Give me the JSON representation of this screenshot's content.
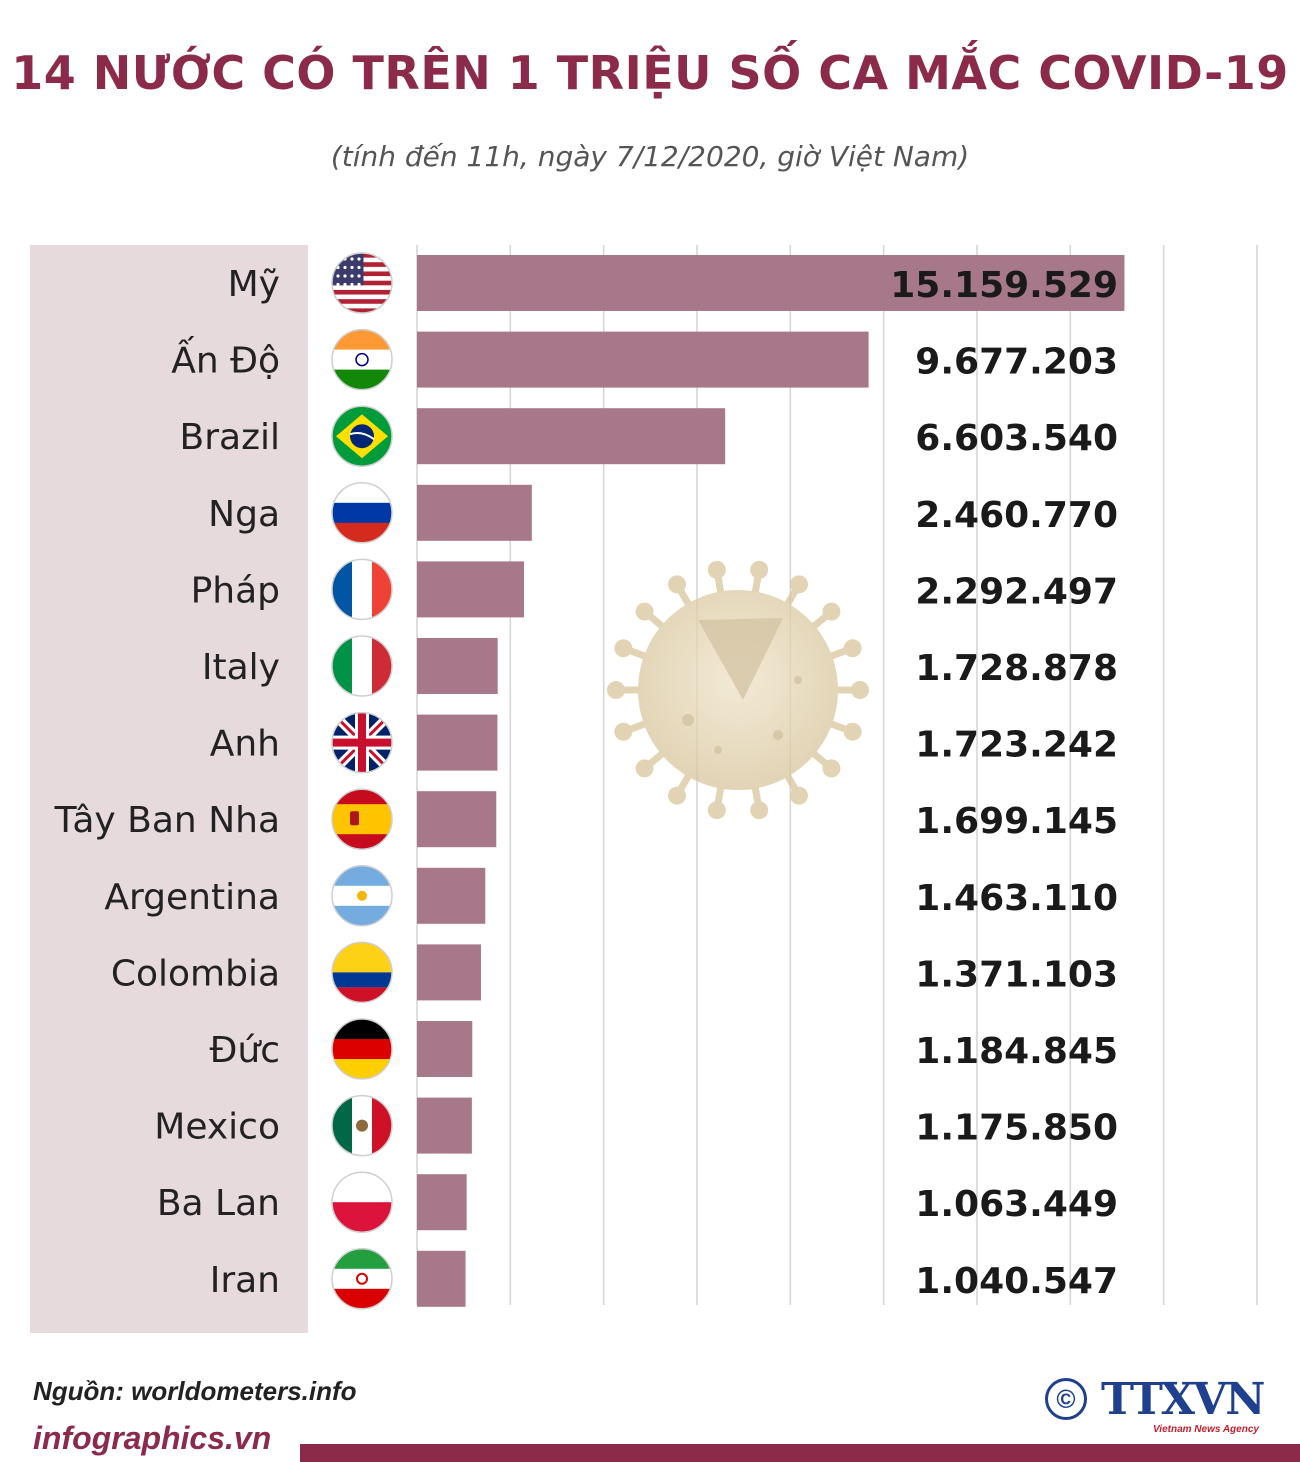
{
  "header": {
    "title": "14 NƯỚC CÓ TRÊN 1 TRIỆU SỐ CA MẮC COVID-19",
    "subtitle": "(tính đến 11h, ngày 7/12/2020, giờ Việt Nam)"
  },
  "chart_data": {
    "type": "bar",
    "orientation": "horizontal",
    "title": "14 NƯỚC CÓ TRÊN 1 TRIỆU SỐ CA MẮC COVID-19",
    "subtitle": "(tính đến 11h, ngày 7/12/2020, giờ Việt Nam)",
    "categories": [
      "Mỹ",
      "Ấn Độ",
      "Brazil",
      "Nga",
      "Pháp",
      "Italy",
      "Anh",
      "Tây Ban Nha",
      "Argentina",
      "Colombia",
      "Đức",
      "Mexico",
      "Ba Lan",
      "Iran"
    ],
    "values": [
      15159529,
      9677203,
      6603540,
      2460770,
      2292497,
      1728878,
      1723242,
      1699145,
      1463110,
      1371103,
      1184845,
      1175850,
      1063449,
      1040547
    ],
    "value_labels": [
      "15.159.529",
      "9.677.203",
      "6.603.540",
      "2.460.770",
      "2.292.497",
      "1.728.878",
      "1.723.242",
      "1.699.145",
      "1.463.110",
      "1.371.103",
      "1.184.845",
      "1.175.850",
      "1.063.449",
      "1.040.547"
    ],
    "flags": [
      "us-flag-icon",
      "india-flag-icon",
      "brazil-flag-icon",
      "russia-flag-icon",
      "france-flag-icon",
      "italy-flag-icon",
      "uk-flag-icon",
      "spain-flag-icon",
      "argentina-flag-icon",
      "colombia-flag-icon",
      "germany-flag-icon",
      "mexico-flag-icon",
      "poland-flag-icon",
      "iran-flag-icon"
    ],
    "xlim": [
      0,
      18000000
    ],
    "grid_step": 2000000,
    "grid": true,
    "xlabel": "",
    "ylabel": "",
    "bar_color": "#a7788a"
  },
  "footer": {
    "source": "Nguồn: worldometers.info",
    "site": "infographics.vn",
    "logo_copyright": "©",
    "logo_text": "TTXVN",
    "agency": "Vietnam News Agency"
  },
  "colors": {
    "title": "#8c2a4a",
    "panel": "#e6dadd",
    "bar": "#a7788a",
    "logo": "#1f3f8f"
  }
}
